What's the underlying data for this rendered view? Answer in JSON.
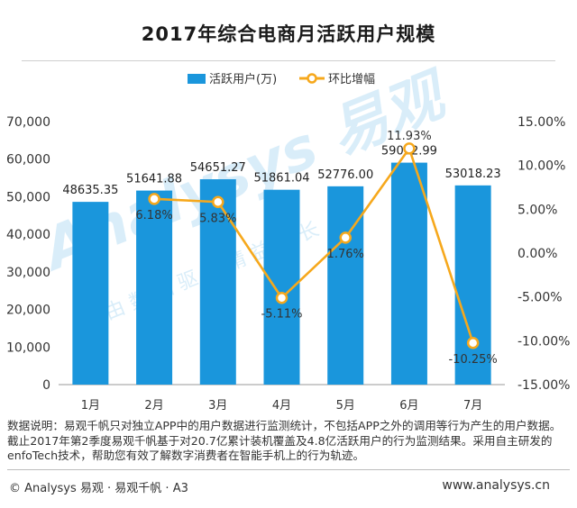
{
  "title": "2017年综合电商月活跃用户规模",
  "chart_data": {
    "type": "bar+line",
    "categories": [
      "1月",
      "2月",
      "3月",
      "4月",
      "5月",
      "6月",
      "7月"
    ],
    "series": [
      {
        "name": "活跃用户(万)",
        "type": "bar",
        "axis": "left",
        "values": [
          48635.35,
          51641.88,
          54651.27,
          51861.04,
          52776.0,
          59072.99,
          53018.23
        ],
        "labels": [
          "48635.35",
          "51641.88",
          "54651.27",
          "51861.04",
          "52776.00",
          "59072.99",
          "53018.23"
        ],
        "color": "#1a96dc"
      },
      {
        "name": "环比增幅",
        "type": "line",
        "axis": "right",
        "values": [
          null,
          6.18,
          5.83,
          -5.11,
          1.76,
          11.93,
          -10.25
        ],
        "labels": [
          "",
          "6.18%",
          "5.83%",
          "-5.11%",
          "1.76%",
          "11.93%",
          "-10.25%"
        ],
        "color": "#f6a81c"
      }
    ],
    "y_left": {
      "range": [
        0,
        70000
      ],
      "ticks": [
        0,
        10000,
        20000,
        30000,
        40000,
        50000,
        60000,
        70000
      ],
      "tick_labels": [
        "0",
        "10,000",
        "20,000",
        "30,000",
        "40,000",
        "50,000",
        "60,000",
        "70,000"
      ]
    },
    "y_right": {
      "range": [
        -15,
        15
      ],
      "ticks": [
        -15,
        -10,
        -5,
        0,
        5,
        10,
        15
      ],
      "tick_labels": [
        "-15.00%",
        "-10.00%",
        "-5.00%",
        "0.00%",
        "5.00%",
        "10.00%",
        "15.00%"
      ]
    },
    "legend_position": "top-center",
    "grid": false
  },
  "watermark": {
    "main": "Analysys 易观",
    "sub": "由 数 据 驱 动 精 益 成 长"
  },
  "note": "数据说明：易观千帆只对独立APP中的用户数据进行监测统计，不包括APP之外的调用等行为产生的用户数据。截止2017年第2季度易观千帆基于对20.7亿累计装机覆盖及4.8亿活跃用户的行为监测结果。采用自主研发的enfoTech技术，帮助您有效了解数字消费者在智能手机上的行为轨迹。",
  "footer": {
    "left": "© Analysys 易观 · 易观千帆 · A3",
    "right": "www.analysys.cn"
  }
}
